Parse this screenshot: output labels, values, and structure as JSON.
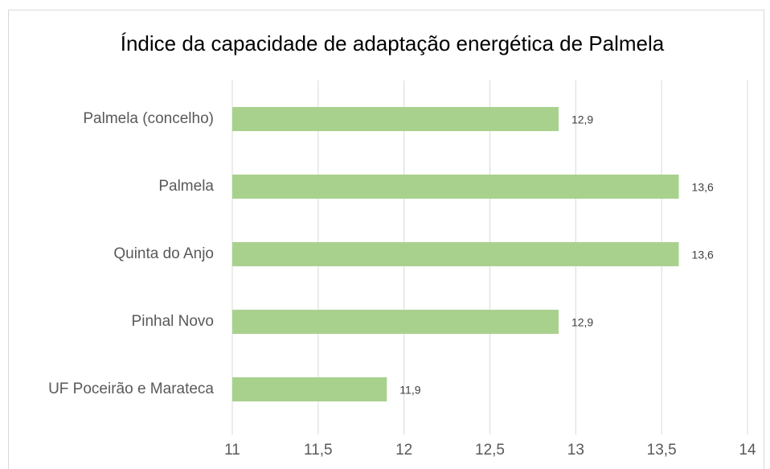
{
  "chart_data": {
    "type": "bar",
    "orientation": "horizontal",
    "title": "Índice da capacidade de adaptação energética de Palmela",
    "categories": [
      "Palmela (concelho)",
      "Palmela",
      "Quinta do Anjo",
      "Pinhal Novo",
      "UF Poceirão e Marateca"
    ],
    "values": [
      12.9,
      13.6,
      13.6,
      12.9,
      11.9
    ],
    "value_labels": [
      "12,9",
      "13,6",
      "13,6",
      "12,9",
      "11,9"
    ],
    "color": "#a9d18e",
    "xlim": [
      11,
      14
    ],
    "xticks": [
      11,
      {
        "value": 11.5,
        "label": "11,5"
      },
      12,
      {
        "value": 12.5,
        "label": "12,5"
      },
      13,
      {
        "value": 13.5,
        "label": "13,5"
      },
      14
    ],
    "grid": true
  }
}
